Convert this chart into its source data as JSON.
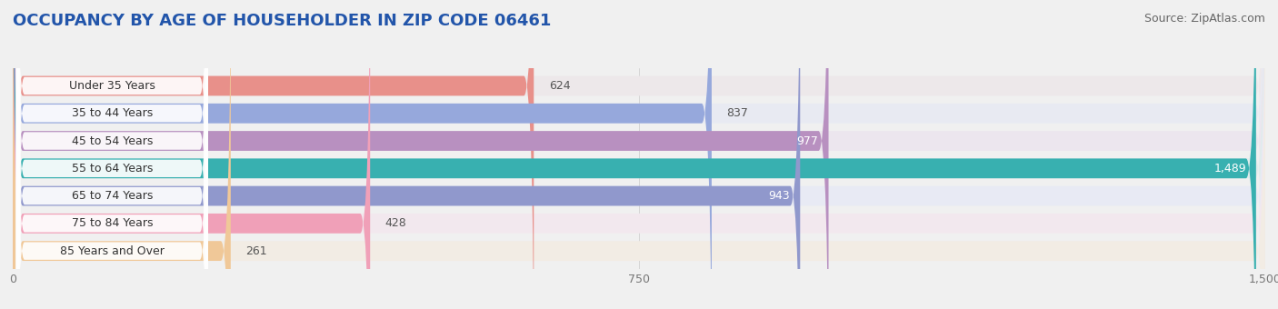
{
  "title": "OCCUPANCY BY AGE OF HOUSEHOLDER IN ZIP CODE 06461",
  "source": "Source: ZipAtlas.com",
  "categories": [
    "Under 35 Years",
    "35 to 44 Years",
    "45 to 54 Years",
    "55 to 64 Years",
    "65 to 74 Years",
    "75 to 84 Years",
    "85 Years and Over"
  ],
  "values": [
    624,
    837,
    977,
    1489,
    943,
    428,
    261
  ],
  "bar_colors": [
    "#e8908a",
    "#96a8dc",
    "#b890c0",
    "#38b0b0",
    "#9098cc",
    "#f0a0b8",
    "#f0c898"
  ],
  "bar_bg_colors": [
    "#ede8ea",
    "#e8eaf2",
    "#ece6ee",
    "#e0ecec",
    "#e8eaf4",
    "#f2e8ee",
    "#f2ece4"
  ],
  "value_inside_color": [
    "#444444",
    "#444444",
    "#ffffff",
    "#ffffff",
    "#ffffff",
    "#444444",
    "#444444"
  ],
  "xlim": [
    0,
    1500
  ],
  "xticks": [
    0,
    750,
    1500
  ],
  "title_fontsize": 13,
  "source_fontsize": 9,
  "label_fontsize": 9,
  "value_fontsize": 9,
  "background_color": "#f0f0f0"
}
